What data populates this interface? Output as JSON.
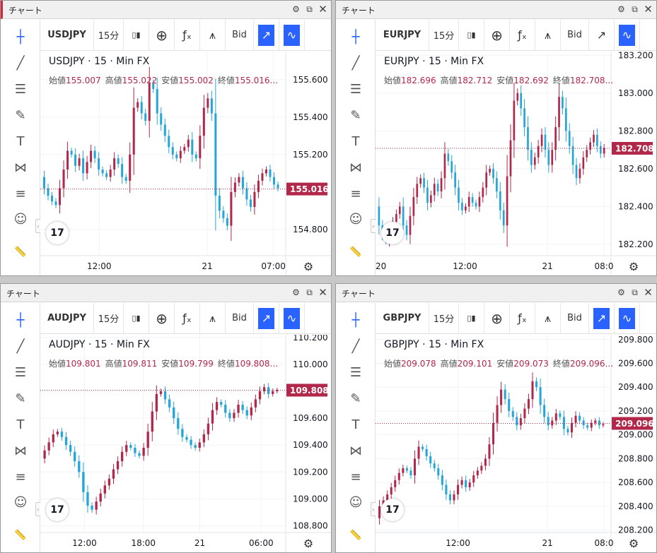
{
  "panels": [
    {
      "id": "p1",
      "title": "チャート",
      "symbol": "USDJPY",
      "interval": "15分",
      "bid_label": "Bid",
      "legend": "USDJPY · 15 · Min FX",
      "ohlc": {
        "open_label": "始値",
        "open": "155.007",
        "high_label": "高値",
        "high": "155.022",
        "low_label": "安値",
        "low": "155.002",
        "close_label": "終値",
        "close": "155.016..."
      },
      "last_price": "155.016",
      "chart_data": {
        "type": "candlestick",
        "y_ticks": [
          "155.600",
          "155.400",
          "155.200",
          "154.800"
        ],
        "y_tick_values": [
          155.6,
          155.4,
          155.2,
          154.8
        ],
        "ylim": [
          154.66,
          155.75
        ],
        "x_ticks": [
          "12:00",
          "21",
          "07:00"
        ],
        "x_tick_positions": [
          0.24,
          0.68,
          0.95
        ],
        "last": 155.016,
        "path": [
          155.08,
          155.02,
          154.98,
          154.95,
          154.93,
          155.02,
          155.12,
          155.22,
          155.2,
          155.14,
          155.18,
          155.1,
          155.16,
          155.22,
          155.18,
          155.12,
          155.1,
          155.08,
          155.12,
          155.18,
          155.15,
          155.08,
          155.06,
          155.2,
          155.45,
          155.48,
          155.42,
          155.38,
          155.58,
          155.55,
          155.42,
          155.36,
          155.3,
          155.24,
          155.2,
          155.18,
          155.22,
          155.24,
          155.28,
          155.2,
          155.18,
          155.3,
          155.45,
          155.5,
          155.42,
          154.98,
          154.9,
          154.86,
          154.82,
          155.0,
          155.05,
          155.08,
          155.02,
          154.96,
          154.92,
          155.0,
          155.06,
          155.1,
          155.12,
          155.08,
          155.04,
          155.02
        ]
      }
    },
    {
      "id": "p2",
      "title": "チャート",
      "symbol": "EURJPY",
      "interval": "15分",
      "bid_label": "Bid",
      "legend": "EURJPY · 15 · Min FX",
      "ohlc": {
        "open_label": "始値",
        "open": "182.696",
        "high_label": "高値",
        "high": "182.712",
        "low_label": "安値",
        "low": "182.692",
        "close_label": "終値",
        "close": "182.708..."
      },
      "last_price": "182.708",
      "chart_data": {
        "type": "candlestick",
        "y_ticks": [
          "183.200",
          "183.000",
          "182.800",
          "182.600",
          "182.400",
          "182.200"
        ],
        "y_tick_values": [
          183.2,
          183.0,
          182.8,
          182.6,
          182.4,
          182.2
        ],
        "ylim": [
          182.14,
          183.22
        ],
        "x_ticks": [
          "20",
          "12:00",
          "21",
          "08:0"
        ],
        "x_tick_positions": [
          0.0,
          0.38,
          0.73,
          0.97
        ],
        "last": 182.708,
        "path": [
          182.4,
          182.3,
          182.25,
          182.22,
          182.28,
          182.32,
          182.36,
          182.4,
          182.3,
          182.25,
          182.35,
          182.45,
          182.52,
          182.55,
          182.5,
          182.42,
          182.46,
          182.52,
          182.48,
          182.55,
          182.68,
          182.64,
          182.58,
          182.5,
          182.42,
          182.38,
          182.4,
          182.45,
          182.42,
          182.4,
          182.45,
          182.5,
          182.58,
          182.6,
          182.55,
          182.48,
          182.38,
          182.3,
          182.56,
          182.75,
          182.96,
          183.0,
          182.92,
          182.82,
          182.7,
          182.62,
          182.66,
          182.72,
          182.78,
          182.7,
          182.62,
          182.7,
          182.82,
          182.98,
          182.92,
          182.8,
          182.72,
          182.62,
          182.55,
          182.6,
          182.66,
          182.7,
          182.74,
          182.78,
          182.72,
          182.68,
          182.71
        ]
      }
    },
    {
      "id": "p3",
      "title": "チャート",
      "symbol": "AUDJPY",
      "interval": "15分",
      "bid_label": "Bid",
      "legend": "AUDJPY · 15 · Min FX",
      "ohlc": {
        "open_label": "始値",
        "open": "109.801",
        "high_label": "高値",
        "high": "109.811",
        "low_label": "安値",
        "low": "109.799",
        "close_label": "終値",
        "close": "109.808..."
      },
      "last_price": "109.808",
      "chart_data": {
        "type": "candlestick",
        "y_ticks": [
          "110.200",
          "110.000",
          "109.800",
          "109.600",
          "109.400",
          "109.200",
          "109.000",
          "108.800"
        ],
        "y_tick_values": [
          110.2,
          110.0,
          109.8,
          109.6,
          109.4,
          109.2,
          109.0,
          108.8
        ],
        "ylim": [
          108.75,
          110.22
        ],
        "x_ticks": [
          "12:00",
          "18:00",
          "21",
          "06:00"
        ],
        "x_tick_positions": [
          0.18,
          0.42,
          0.65,
          0.9
        ],
        "last": 109.808,
        "path": [
          109.3,
          109.36,
          109.42,
          109.48,
          109.5,
          109.46,
          109.4,
          109.35,
          109.28,
          109.2,
          109.05,
          108.95,
          108.92,
          108.98,
          109.04,
          109.1,
          109.15,
          109.22,
          109.28,
          109.35,
          109.4,
          109.38,
          109.34,
          109.32,
          109.38,
          109.5,
          109.65,
          109.78,
          109.8,
          109.74,
          109.68,
          109.6,
          109.52,
          109.46,
          109.44,
          109.4,
          109.38,
          109.42,
          109.48,
          109.56,
          109.66,
          109.72,
          109.7,
          109.64,
          109.6,
          109.64,
          109.7,
          109.66,
          109.62,
          109.68,
          109.74,
          109.8,
          109.83,
          109.78,
          109.8,
          109.81
        ]
      }
    },
    {
      "id": "p4",
      "title": "チャート",
      "symbol": "GBPJPY",
      "interval": "15分",
      "bid_label": "Bid",
      "legend": "GBPJPY · 15 · Min FX",
      "ohlc": {
        "open_label": "始値",
        "open": "209.078",
        "high_label": "高値",
        "high": "209.101",
        "low_label": "安値",
        "low": "209.073",
        "close_label": "終値",
        "close": "209.096..."
      },
      "last_price": "209.096",
      "chart_data": {
        "type": "candlestick",
        "y_ticks": [
          "209.800",
          "209.600",
          "209.400",
          "209.200",
          "209.000",
          "208.800",
          "208.600",
          "208.400",
          "208.200"
        ],
        "y_tick_values": [
          209.8,
          209.6,
          209.4,
          209.2,
          209.0,
          208.8,
          208.6,
          208.4,
          208.2
        ],
        "ylim": [
          208.18,
          209.84
        ],
        "x_ticks": [
          "12:00",
          "21",
          "08:0"
        ],
        "x_tick_positions": [
          0.35,
          0.73,
          0.97
        ],
        "last": 209.096,
        "path": [
          208.3,
          208.4,
          208.45,
          208.5,
          208.56,
          208.62,
          208.68,
          208.72,
          208.7,
          208.66,
          208.8,
          208.9,
          208.88,
          208.82,
          208.76,
          208.72,
          208.66,
          208.58,
          208.5,
          208.45,
          208.5,
          208.58,
          208.62,
          208.56,
          208.6,
          208.66,
          208.7,
          208.74,
          208.8,
          208.92,
          209.1,
          209.25,
          209.38,
          209.3,
          209.2,
          209.15,
          209.08,
          209.14,
          209.22,
          209.3,
          209.45,
          209.4,
          209.25,
          209.15,
          209.08,
          209.12,
          209.18,
          209.15,
          209.05,
          209.02,
          209.1,
          209.16,
          209.12,
          209.08,
          209.06,
          209.1,
          209.12,
          209.08,
          209.09
        ]
      }
    }
  ],
  "colors": {
    "up": "#b2284a",
    "down": "#26a6d8",
    "accent": "#2962ff",
    "price_line": "#b2284a",
    "active_border": "#d0263e"
  },
  "icons": {
    "sidebar": [
      "crosshair-icon",
      "trend-line-icon",
      "fib-icon",
      "brush-icon",
      "text-icon",
      "pattern-icon",
      "forecast-icon",
      "emoji-icon",
      "ruler-icon"
    ],
    "toolbar": [
      "candles-icon",
      "add-icon",
      "fx-icon",
      "indicator-icon",
      "compare-icon",
      "replay-icon"
    ]
  }
}
